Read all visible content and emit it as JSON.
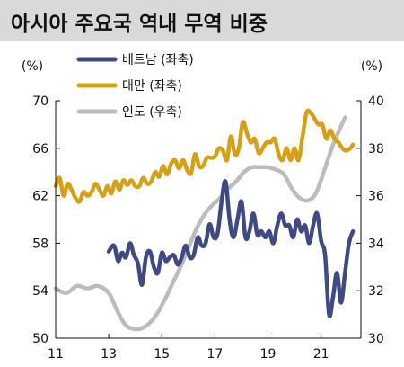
{
  "title": "아시아 주요국 역내 무역 비중",
  "chart_data": {
    "type": "line",
    "left_axis": {
      "unit": "(%)",
      "range": [
        50,
        70
      ],
      "ticks": [
        "50",
        "54",
        "58",
        "62",
        "66",
        "70"
      ]
    },
    "right_axis": {
      "unit": "(%)",
      "range": [
        30,
        40
      ],
      "ticks": [
        "30",
        "32",
        "34",
        "36",
        "38",
        "40"
      ]
    },
    "x_axis": {
      "range": [
        2011,
        2022.5
      ],
      "ticks": [
        "11",
        "13",
        "15",
        "17",
        "19",
        "21"
      ]
    },
    "colors": {
      "vietnam": "#3f4a82",
      "taiwan": "#d4a017",
      "india": "#bcbcbc"
    },
    "series": [
      {
        "name": "베트남 (좌축)",
        "axis": "left",
        "color": "#3f4a82",
        "x": [
          2013.0,
          2013.2,
          2013.35,
          2013.5,
          2013.65,
          2013.8,
          2013.95,
          2014.1,
          2014.25,
          2014.4,
          2014.55,
          2014.7,
          2014.85,
          2015.0,
          2015.15,
          2015.3,
          2015.45,
          2015.6,
          2015.75,
          2015.9,
          2016.05,
          2016.2,
          2016.35,
          2016.5,
          2016.65,
          2016.8,
          2016.95,
          2017.1,
          2017.25,
          2017.4,
          2017.55,
          2017.7,
          2017.85,
          2018.0,
          2018.15,
          2018.3,
          2018.45,
          2018.6,
          2018.75,
          2018.9,
          2019.05,
          2019.2,
          2019.35,
          2019.5,
          2019.65,
          2019.8,
          2019.95,
          2020.1,
          2020.25,
          2020.4,
          2020.55,
          2020.7,
          2020.85,
          2021.0,
          2021.15,
          2021.3,
          2021.45,
          2021.6,
          2021.75,
          2021.9,
          2022.05,
          2022.2
        ],
        "y": [
          57.3,
          57.8,
          56.5,
          57.2,
          56.8,
          58.0,
          57.0,
          56.3,
          54.5,
          56.8,
          57.3,
          56.0,
          55.5,
          57.2,
          56.5,
          56.8,
          57.0,
          56.2,
          56.8,
          57.8,
          56.8,
          57.0,
          58.5,
          57.8,
          58.0,
          59.6,
          58.5,
          58.8,
          61.5,
          63.2,
          60.0,
          58.5,
          60.0,
          61.5,
          58.5,
          59.0,
          60.5,
          58.7,
          59.0,
          58.5,
          59.0,
          58.0,
          59.5,
          60.5,
          59.5,
          59.5,
          58.5,
          60.0,
          59.0,
          59.5,
          58.0,
          59.5,
          60.5,
          58.2,
          57.0,
          52.0,
          53.5,
          55.5,
          53.0,
          55.5,
          58.0,
          59.0
        ]
      },
      {
        "name": "대만 (좌축)",
        "axis": "left",
        "color": "#d4a017",
        "x": [
          2011.0,
          2011.15,
          2011.3,
          2011.45,
          2011.6,
          2011.75,
          2011.9,
          2012.05,
          2012.2,
          2012.35,
          2012.5,
          2012.65,
          2012.8,
          2012.95,
          2013.1,
          2013.25,
          2013.4,
          2013.55,
          2013.7,
          2013.85,
          2014.0,
          2014.15,
          2014.3,
          2014.45,
          2014.6,
          2014.75,
          2014.9,
          2015.05,
          2015.2,
          2015.35,
          2015.5,
          2015.65,
          2015.8,
          2015.95,
          2016.1,
          2016.25,
          2016.4,
          2016.55,
          2016.7,
          2016.85,
          2017.0,
          2017.15,
          2017.3,
          2017.45,
          2017.6,
          2017.75,
          2017.9,
          2018.05,
          2018.2,
          2018.35,
          2018.5,
          2018.65,
          2018.8,
          2018.95,
          2019.1,
          2019.25,
          2019.4,
          2019.55,
          2019.7,
          2019.85,
          2020.0,
          2020.15,
          2020.3,
          2020.45,
          2020.6,
          2020.75,
          2020.9,
          2021.05,
          2021.2,
          2021.35,
          2021.5,
          2021.65,
          2021.8,
          2021.95,
          2022.1,
          2022.2
        ],
        "y": [
          62.8,
          63.5,
          62.0,
          63.0,
          62.5,
          61.8,
          61.5,
          62.3,
          62.0,
          62.3,
          63.0,
          62.5,
          62.0,
          62.8,
          62.2,
          63.2,
          62.5,
          63.3,
          62.9,
          63.3,
          62.8,
          62.8,
          63.5,
          63.0,
          63.2,
          64.0,
          63.6,
          64.5,
          63.8,
          64.7,
          65.0,
          64.3,
          65.0,
          64.2,
          63.9,
          65.5,
          64.5,
          64.5,
          65.2,
          65.2,
          65.3,
          66.0,
          65.8,
          65.0,
          67.0,
          65.5,
          66.0,
          68.2,
          67.3,
          66.5,
          66.8,
          65.6,
          66.0,
          66.5,
          66.5,
          66.8,
          65.5,
          65.0,
          66.0,
          65.0,
          66.0,
          65.0,
          67.0,
          69.0,
          69.0,
          68.5,
          68.0,
          68.0,
          66.8,
          67.5,
          66.8,
          66.5,
          66.0,
          65.8,
          66.0,
          66.3
        ]
      },
      {
        "name": "인도 (우축)",
        "axis": "right",
        "color": "#bcbcbc",
        "x": [
          2011.0,
          2011.4,
          2011.8,
          2012.2,
          2012.6,
          2013.0,
          2013.3,
          2013.6,
          2013.9,
          2014.2,
          2014.5,
          2014.8,
          2015.1,
          2015.4,
          2015.7,
          2016.0,
          2016.3,
          2016.6,
          2016.9,
          2017.2,
          2017.5,
          2017.8,
          2018.1,
          2018.4,
          2018.7,
          2019.0,
          2019.3,
          2019.6,
          2019.9,
          2020.2,
          2020.5,
          2020.8,
          2021.1,
          2021.4,
          2021.7,
          2021.9
        ],
        "y": [
          32.1,
          31.9,
          32.2,
          32.1,
          32.2,
          31.9,
          31.2,
          30.6,
          30.4,
          30.4,
          30.6,
          31.0,
          31.6,
          32.3,
          33.0,
          33.8,
          34.6,
          35.2,
          35.6,
          35.9,
          36.3,
          36.6,
          37.0,
          37.2,
          37.2,
          37.2,
          37.1,
          36.9,
          36.3,
          35.9,
          35.8,
          36.1,
          37.0,
          38.0,
          38.8,
          39.3
        ]
      }
    ]
  }
}
